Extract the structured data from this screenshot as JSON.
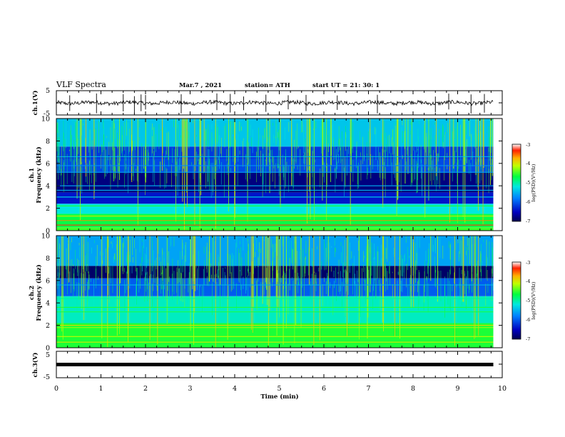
{
  "header": {
    "title": "VLF Spectra",
    "date": "Mar.7 , 2021",
    "station": "station= ATH",
    "start_ut": "start UT =   21: 30: 1"
  },
  "chart_data": [
    {
      "type": "line",
      "name": "ch1-waveform",
      "ylabel": "ch.1(V)",
      "ylim": [
        -5,
        5
      ],
      "yticks": [
        "5",
        "-5"
      ],
      "xlim": [
        0,
        10
      ],
      "level": 0,
      "x_end": 9.8
    },
    {
      "type": "heatmap",
      "name": "ch1-spectrogram",
      "ylabel_top": "ch.1",
      "ylabel": "Frequency (kHz)",
      "ylim": [
        0,
        10
      ],
      "yticks": [
        "0",
        "2",
        "4",
        "6",
        "8",
        "10"
      ],
      "xlim": [
        0,
        10
      ],
      "x_end": 9.8,
      "colorbar": {
        "range": [
          -7,
          -3
        ],
        "ticks": [
          "-3",
          "-4",
          "-5",
          "-6",
          "-7"
        ],
        "label": "log(PSD)(V²/Hz)"
      },
      "bands": [
        {
          "from": 0,
          "to": 0.3,
          "level": -4.5
        },
        {
          "from": 0.3,
          "to": 1.5,
          "level": -4.7
        },
        {
          "from": 1.5,
          "to": 2.4,
          "level": -5.2
        },
        {
          "from": 2.4,
          "to": 3.4,
          "level": -6.4
        },
        {
          "from": 3.4,
          "to": 5.2,
          "level": -6.8
        },
        {
          "from": 5.2,
          "to": 6.4,
          "level": -6.1
        },
        {
          "from": 6.4,
          "to": 7.5,
          "level": -6.2
        },
        {
          "from": 7.5,
          "to": 10,
          "level": -5.4
        }
      ],
      "lines": [
        {
          "f": 0.5,
          "level": -3.3
        },
        {
          "f": 0.9,
          "level": -3.6
        },
        {
          "f": 1.3,
          "level": -4.0
        },
        {
          "f": 2.2,
          "level": -4.6
        },
        {
          "f": 3.0,
          "level": -5.3
        },
        {
          "f": 3.6,
          "level": -5.5
        },
        {
          "f": 4.0,
          "level": -5.5
        },
        {
          "f": 5.2,
          "level": -5.6
        },
        {
          "f": 5.8,
          "level": -5.7
        },
        {
          "f": 6.6,
          "level": -5.4
        }
      ]
    },
    {
      "type": "heatmap",
      "name": "ch2-spectrogram",
      "ylabel_top": "ch.2",
      "ylabel": "Frequency (kHz)",
      "ylim": [
        0,
        10
      ],
      "yticks": [
        "0",
        "2",
        "4",
        "6",
        "8",
        "10"
      ],
      "xlim": [
        0,
        10
      ],
      "x_end": 9.8,
      "colorbar": {
        "range": [
          -7,
          -3
        ],
        "ticks": [
          "-3",
          "-4",
          "-5",
          "-6",
          "-7"
        ],
        "label": "log(PSD)(V²/Hz)"
      },
      "bands": [
        {
          "from": 0,
          "to": 2.2,
          "level": -4.6
        },
        {
          "from": 2.2,
          "to": 4.6,
          "level": -5.1
        },
        {
          "from": 4.6,
          "to": 6.2,
          "level": -6.0
        },
        {
          "from": 6.2,
          "to": 7.3,
          "level": -6.9
        },
        {
          "from": 7.3,
          "to": 10,
          "level": -5.6
        }
      ],
      "lines": [
        {
          "f": 0.5,
          "level": -4.0
        },
        {
          "f": 1.0,
          "level": -4.1
        },
        {
          "f": 1.8,
          "level": -4.2
        },
        {
          "f": 2.0,
          "level": -3.9
        },
        {
          "f": 3.2,
          "level": -4.6
        },
        {
          "f": 3.6,
          "level": -4.6
        },
        {
          "f": 4.4,
          "level": -5.0
        },
        {
          "f": 5.6,
          "level": -5.5
        }
      ]
    },
    {
      "type": "line",
      "name": "ch3-waveform",
      "ylabel": "ch.3(V)",
      "ylim": [
        -5,
        5
      ],
      "yticks": [
        "5",
        "-5"
      ],
      "xlim": [
        0,
        10
      ],
      "xlabel": "Time (min)",
      "xticks": [
        "0",
        "1",
        "2",
        "3",
        "4",
        "5",
        "6",
        "7",
        "8",
        "9",
        "10"
      ],
      "level": 0,
      "x_end": 9.8
    }
  ]
}
